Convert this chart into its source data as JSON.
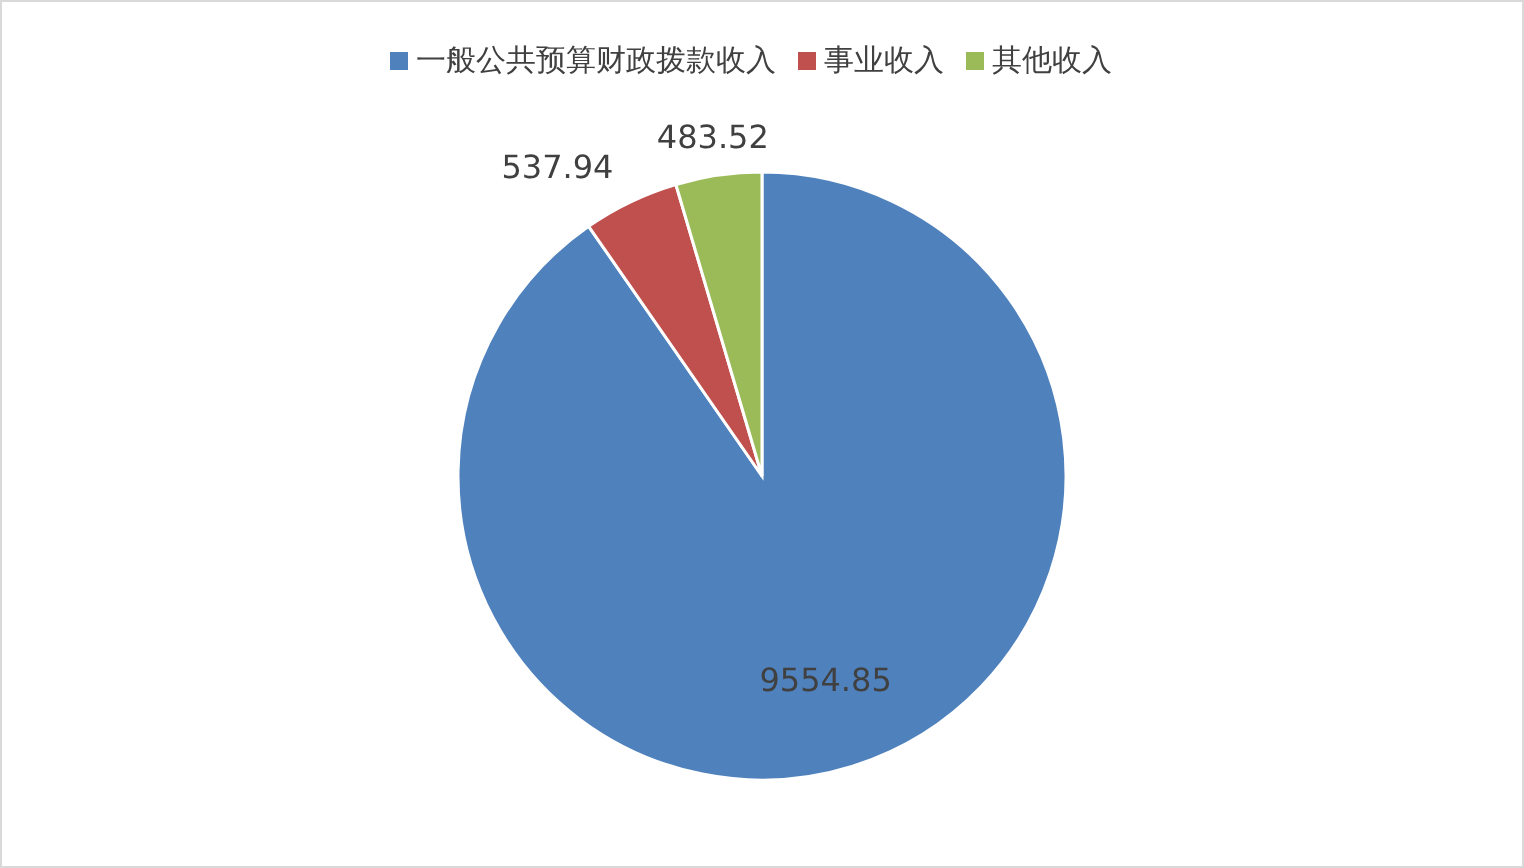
{
  "chart_data": {
    "type": "pie",
    "categories": [
      "一般公共预算财政拨款收入",
      "事业收入",
      "其他收入"
    ],
    "values": [
      9554.85,
      537.94,
      483.52
    ],
    "colors": [
      "#4f81bd",
      "#c0504d",
      "#9bbb59"
    ],
    "data_labels": true,
    "legend": "top"
  }
}
